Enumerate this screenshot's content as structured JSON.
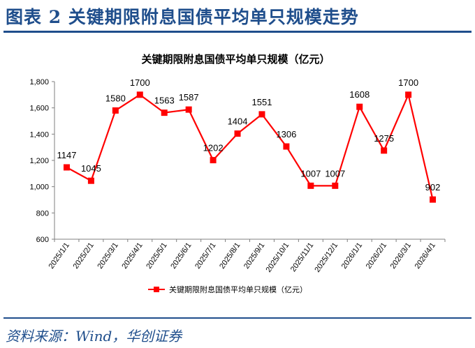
{
  "figure": {
    "title": "图表 2   关键期限附息国债平均单只规模走势",
    "source": "资料来源：Wind，华创证券"
  },
  "chart_data": {
    "type": "line",
    "title": "关键期限附息国债平均单只规模（亿元）",
    "xlabel": "",
    "ylabel": "",
    "categories": [
      "2025/1/1",
      "2025/2/1",
      "2025/3/1",
      "2025/4/1",
      "2025/5/1",
      "2025/6/1",
      "2025/7/1",
      "2025/8/1",
      "2025/9/1",
      "2025/10/1",
      "2025/11/1",
      "2025/12/1",
      "2026/1/1",
      "2026/2/1",
      "2026/3/1",
      "2026/4/1"
    ],
    "series": [
      {
        "name": "关键期限附息国债平均单只规模（亿元）",
        "values": [
          1147,
          1045,
          1580,
          1700,
          1563,
          1587,
          1202,
          1404,
          1551,
          1306,
          1007,
          1007,
          1608,
          1275,
          1700,
          902
        ],
        "labels": [
          "1147",
          "1045",
          "1580",
          "1700",
          "1563",
          "1587",
          "1202",
          "1404",
          "1551",
          "1306",
          "1007",
          "1007",
          "1608",
          "1275",
          "1700",
          "902"
        ]
      }
    ],
    "ylim": [
      600,
      1800
    ],
    "yticks": [
      600,
      800,
      1000,
      1200,
      1400,
      1600,
      1800
    ],
    "ytick_labels": [
      "600",
      "800",
      "1,000",
      "1,200",
      "1,400",
      "1,600",
      "1,800"
    ],
    "grid": false,
    "legend_position": "bottom",
    "line_color": "#ff0000",
    "marker_color": "#ff0000",
    "marker": "square"
  }
}
